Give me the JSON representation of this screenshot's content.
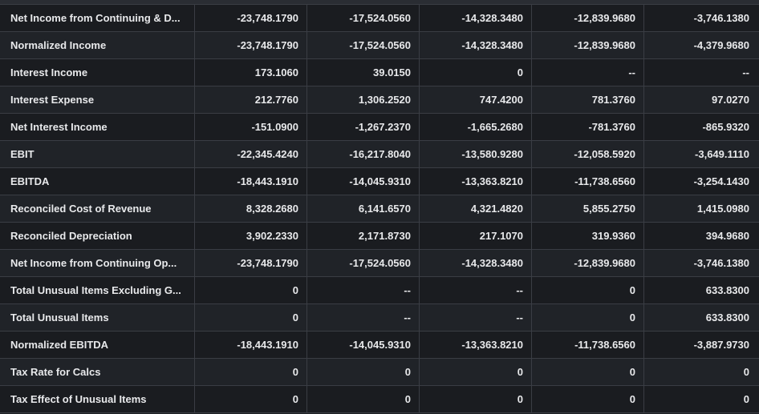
{
  "rows": [
    {
      "label": "Net Income from Continuing & D...",
      "values": [
        "-23,748.1790",
        "-17,524.0560",
        "-14,328.3480",
        "-12,839.9680",
        "-3,746.1380"
      ]
    },
    {
      "label": "Normalized Income",
      "values": [
        "-23,748.1790",
        "-17,524.0560",
        "-14,328.3480",
        "-12,839.9680",
        "-4,379.9680"
      ]
    },
    {
      "label": "Interest Income",
      "values": [
        "173.1060",
        "39.0150",
        "0",
        "--",
        "--"
      ]
    },
    {
      "label": "Interest Expense",
      "values": [
        "212.7760",
        "1,306.2520",
        "747.4200",
        "781.3760",
        "97.0270"
      ]
    },
    {
      "label": "Net Interest Income",
      "values": [
        "-151.0900",
        "-1,267.2370",
        "-1,665.2680",
        "-781.3760",
        "-865.9320"
      ]
    },
    {
      "label": "EBIT",
      "values": [
        "-22,345.4240",
        "-16,217.8040",
        "-13,580.9280",
        "-12,058.5920",
        "-3,649.1110"
      ]
    },
    {
      "label": "EBITDA",
      "values": [
        "-18,443.1910",
        "-14,045.9310",
        "-13,363.8210",
        "-11,738.6560",
        "-3,254.1430"
      ]
    },
    {
      "label": "Reconciled Cost of Revenue",
      "values": [
        "8,328.2680",
        "6,141.6570",
        "4,321.4820",
        "5,855.2750",
        "1,415.0980"
      ]
    },
    {
      "label": "Reconciled Depreciation",
      "values": [
        "3,902.2330",
        "2,171.8730",
        "217.1070",
        "319.9360",
        "394.9680"
      ]
    },
    {
      "label": "Net Income from Continuing Op...",
      "values": [
        "-23,748.1790",
        "-17,524.0560",
        "-14,328.3480",
        "-12,839.9680",
        "-3,746.1380"
      ]
    },
    {
      "label": "Total Unusual Items Excluding G...",
      "values": [
        "0",
        "--",
        "--",
        "0",
        "633.8300"
      ]
    },
    {
      "label": "Total Unusual Items",
      "values": [
        "0",
        "--",
        "--",
        "0",
        "633.8300"
      ]
    },
    {
      "label": "Normalized EBITDA",
      "values": [
        "-18,443.1910",
        "-14,045.9310",
        "-13,363.8210",
        "-11,738.6560",
        "-3,887.9730"
      ]
    },
    {
      "label": "Tax Rate for Calcs",
      "values": [
        "0",
        "0",
        "0",
        "0",
        "0"
      ]
    },
    {
      "label": "Tax Effect of Unusual Items",
      "values": [
        "0",
        "0",
        "0",
        "0",
        "0"
      ]
    }
  ]
}
